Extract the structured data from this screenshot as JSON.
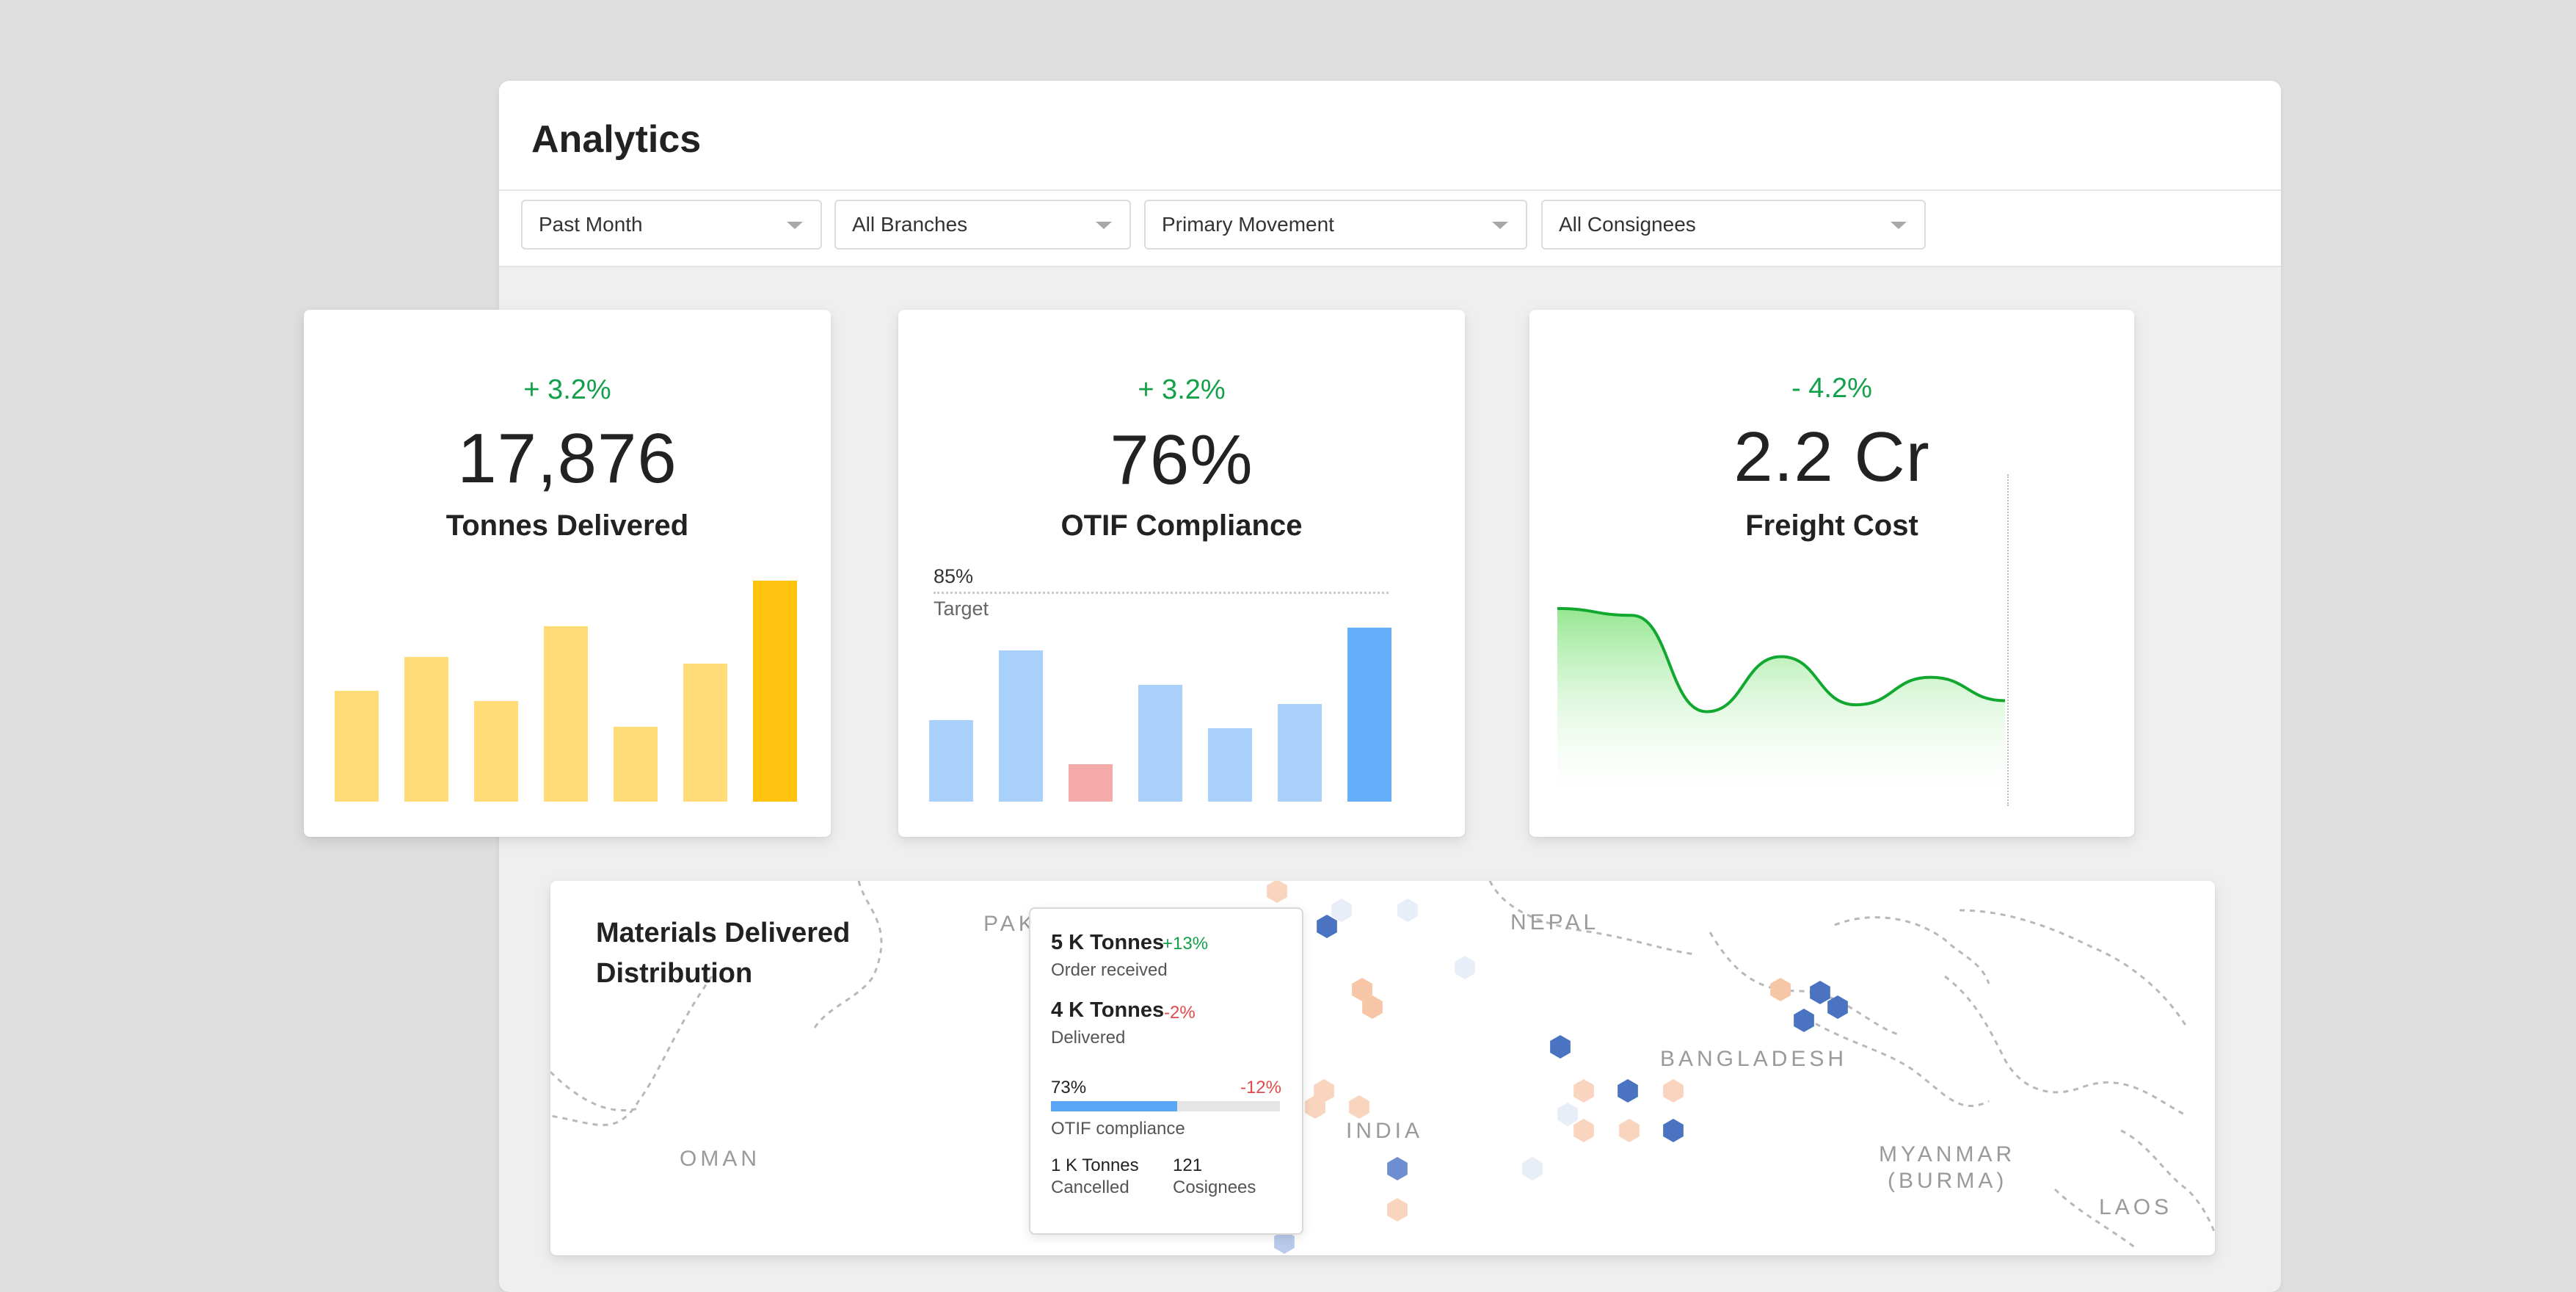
{
  "header": {
    "title": "Analytics"
  },
  "filters": [
    {
      "label": "Past Month"
    },
    {
      "label": "All Branches"
    },
    {
      "label": "Primary Movement"
    },
    {
      "label": "All Consignees"
    }
  ],
  "kpis": [
    {
      "delta": "+ 3.2%",
      "value": "17,876",
      "label": "Tonnes Delivered"
    },
    {
      "delta": "+ 3.2%",
      "value": "76%",
      "label": "OTIF Compliance",
      "target_value": "85%",
      "target_label": "Target"
    },
    {
      "delta": "- 4.2%",
      "value": "2.2 Cr",
      "label": "Freight Cost"
    }
  ],
  "chart_data": [
    {
      "type": "bar",
      "values": [
        68,
        89,
        62,
        108,
        46,
        85,
        136
      ],
      "colors": [
        "#ffdc78",
        "#ffdc78",
        "#ffdc78",
        "#ffdc78",
        "#ffdc78",
        "#ffdc78",
        "#ffc20e"
      ],
      "ylim": [
        0,
        140
      ]
    },
    {
      "type": "bar",
      "values": [
        50,
        93,
        23,
        72,
        45,
        60,
        107
      ],
      "colors": [
        "#a9d0fb",
        "#a9d0fb",
        "#f5aaaa",
        "#a9d0fb",
        "#a9d0fb",
        "#a9d0fb",
        "#66b0fb"
      ],
      "target": 128,
      "ylim": [
        0,
        140
      ]
    },
    {
      "type": "area",
      "values": [
        135,
        130,
        60,
        100,
        65,
        85,
        68
      ],
      "color": "#12a82f",
      "ylim": [
        0,
        160
      ]
    }
  ],
  "map": {
    "title_line1": "Materials Delivered",
    "title_line2": "Distribution",
    "countries": [
      "PAK",
      "NEPAL",
      "BANGLADESH",
      "INDIA",
      "OMAN",
      "MYANMAR",
      "(BURMA)",
      "LAOS"
    ]
  },
  "tooltip": {
    "order_value": "5 K Tonnes",
    "order_delta": "+13%",
    "order_label": "Order received",
    "delivered_value": "4 K Tonnes",
    "delivered_delta": "-2%",
    "delivered_label": "Delivered",
    "otif_value": "73%",
    "otif_delta": "-12%",
    "otif_label": "OTIF compliance",
    "otif_fraction": 0.55,
    "cancelled_value": "1 K Tonnes",
    "cancelled_label": "Cancelled",
    "consignees_value": "121",
    "consignees_label": "Cosignees"
  }
}
